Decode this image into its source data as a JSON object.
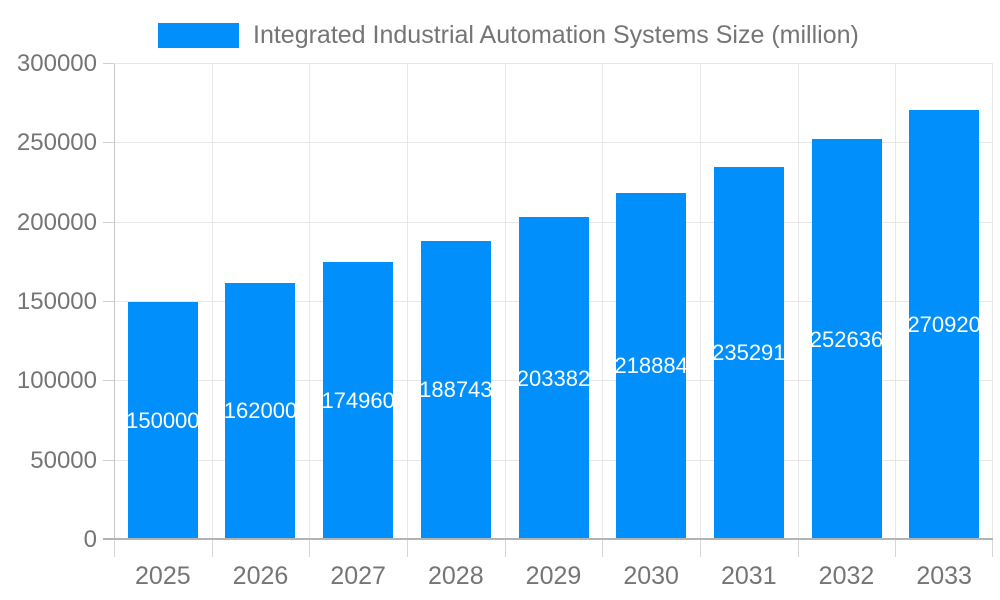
{
  "legend": {
    "label": "Integrated Industrial Automation Systems Size (million)",
    "swatch_color": "#008FFB"
  },
  "chart_data": {
    "type": "bar",
    "title": "Integrated Industrial Automation Systems Size (million)",
    "categories": [
      "2025",
      "2026",
      "2027",
      "2028",
      "2029",
      "2030",
      "2031",
      "2032",
      "2033"
    ],
    "series": [
      {
        "name": "Integrated Industrial Automation Systems Size (million)",
        "values": [
          150000,
          162000,
          174960,
          188743,
          203382,
          218884,
          235291,
          252636,
          270920
        ]
      }
    ],
    "data_labels": [
      "150000",
      "162000",
      "174960",
      "188743",
      "203382",
      "218884",
      "235291",
      "252636",
      "270920"
    ],
    "data_label_color": "#ffffff",
    "bar_color": "#008FFB",
    "xlabel": "",
    "ylabel": "",
    "ylim": [
      0,
      300000
    ],
    "y_tick_step": 50000,
    "y_tick_values": [
      0,
      50000,
      100000,
      150000,
      200000,
      250000,
      300000
    ],
    "y_tick_labels": [
      "0",
      "50000",
      "100000",
      "150000",
      "200000",
      "250000",
      "300000"
    ],
    "grid": true,
    "legend_position": "top"
  }
}
